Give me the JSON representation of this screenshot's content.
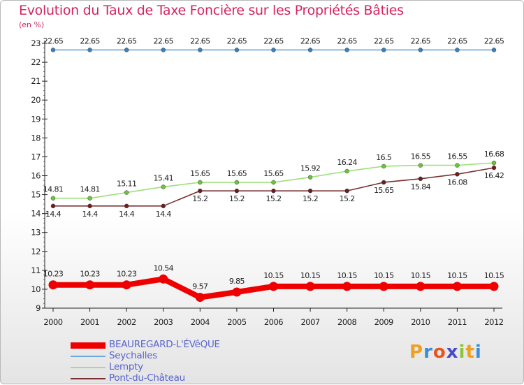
{
  "title": "Evolution du Taux de Taxe Foncière sur les Propriétés Bâties",
  "unit_label": "(en %)",
  "chart_data": {
    "type": "line",
    "title": "Evolution du Taux de Taxe Foncière sur les Propriétés Bâties",
    "ylabel": "(en %)",
    "xlabel": "",
    "categories": [
      "2000",
      "2001",
      "2002",
      "2003",
      "2004",
      "2005",
      "2006",
      "2007",
      "2008",
      "2009",
      "2010",
      "2011",
      "2012"
    ],
    "ylim": [
      9,
      23
    ],
    "yticks": [
      9,
      10,
      11,
      12,
      13,
      14,
      15,
      16,
      17,
      18,
      19,
      20,
      21,
      22,
      23
    ],
    "grid": false,
    "legend_position": "bottom-left",
    "series": [
      {
        "name": "BEAUREGARD-L'ÉVêQUE",
        "color": "#ee0000",
        "thickness": "heavy",
        "values": [
          10.23,
          10.23,
          10.23,
          10.54,
          9.57,
          9.85,
          10.15,
          10.15,
          10.15,
          10.15,
          10.15,
          10.15,
          10.15
        ],
        "labels": [
          "10.23",
          "10.23",
          "10.23",
          "10.54",
          "9.57",
          "9.85",
          "10.15",
          "10.15",
          "10.15",
          "10.15",
          "10.15",
          "10.15",
          "10.15"
        ]
      },
      {
        "name": "Seychalles",
        "color": "#6fa8d6",
        "marker": "#3a7fb5",
        "thickness": "thin",
        "values": [
          22.65,
          22.65,
          22.65,
          22.65,
          22.65,
          22.65,
          22.65,
          22.65,
          22.65,
          22.65,
          22.65,
          22.65,
          22.65
        ],
        "labels": [
          "22.65",
          "22.65",
          "22.65",
          "22.65",
          "22.65",
          "22.65",
          "22.65",
          "22.65",
          "22.65",
          "22.65",
          "22.65",
          "22.65",
          "22.65"
        ]
      },
      {
        "name": "Lempty",
        "color": "#9ee07a",
        "marker": "#6cc43a",
        "thickness": "thin",
        "values": [
          14.81,
          14.81,
          15.11,
          15.41,
          15.65,
          15.65,
          15.65,
          15.92,
          16.24,
          16.5,
          16.55,
          16.55,
          16.68
        ],
        "labels": [
          "14.81",
          "14.81",
          "15.11",
          "15.41",
          "15.65",
          "15.65",
          "15.65",
          "15.92",
          "16.24",
          "16.5",
          "16.55",
          "16.55",
          "16.68"
        ]
      },
      {
        "name": "Pont-du-Château",
        "color": "#7a3030",
        "marker": "#6a1e1e",
        "thickness": "thin",
        "values": [
          14.4,
          14.4,
          14.4,
          14.4,
          15.2,
          15.2,
          15.2,
          15.2,
          15.2,
          15.65,
          15.84,
          16.08,
          16.42
        ],
        "labels": [
          "14.4",
          "14.4",
          "14.4",
          "14.4",
          "15.2",
          "15.2",
          "15.2",
          "15.2",
          "15.2",
          "15.65",
          "15.84",
          "16.08",
          "16.42"
        ]
      }
    ]
  },
  "legend": [
    {
      "label": "BEAUREGARD-L'ÉVêQUE",
      "color": "#ee0000",
      "thickness": "heavy"
    },
    {
      "label": "Seychalles",
      "color": "#6fa8d6",
      "thickness": "thin"
    },
    {
      "label": "Lempty",
      "color": "#9ee07a",
      "thickness": "thin"
    },
    {
      "label": "Pont-du-Château",
      "color": "#7a3030",
      "thickness": "thin"
    }
  ],
  "logo": {
    "text": "Proxiti",
    "letter_colors": [
      "#f0a020",
      "#3a8ed8",
      "#e8541e",
      "#4a4ac8",
      "#8cc43a",
      "#f0a020",
      "#3a8ed8"
    ]
  }
}
